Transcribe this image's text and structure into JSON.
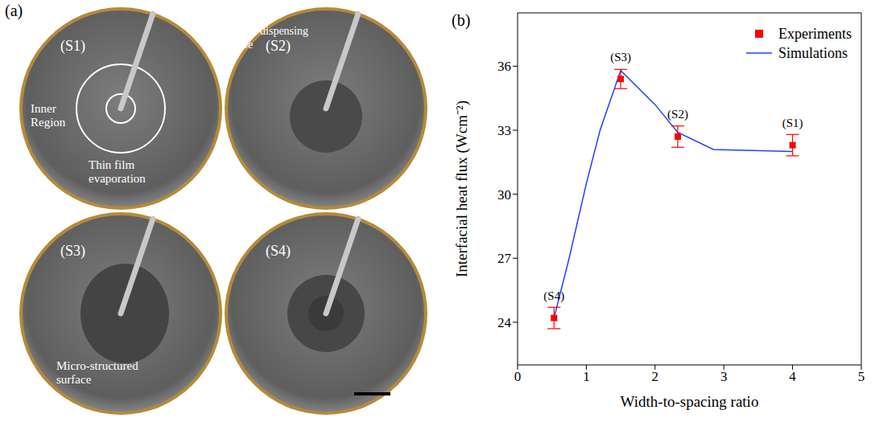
{
  "panel_labels": [
    "(a)",
    "(b)"
  ],
  "panel_a": {
    "photos": [
      {
        "label": "(S1)",
        "annotations": [
          "Inner Region",
          "Thin film evaporation"
        ]
      },
      {
        "label": "(S2)",
        "annotations": [
          "Fluid dispensing tube"
        ]
      },
      {
        "label": "(S3)",
        "annotations": [
          "Micro-structured surface"
        ]
      },
      {
        "label": "(S4)"
      }
    ]
  },
  "chart_data": {
    "type": "scatter",
    "x_label": "Width-to-spacing ratio",
    "y_label": "Interfacial heat flux (Wcm⁻²)",
    "xlim": [
      0,
      5
    ],
    "xticks": [
      0,
      1,
      2,
      3,
      4,
      5
    ],
    "ylim": [
      22,
      38.5
    ],
    "yticks": [
      24,
      27,
      30,
      33,
      36
    ],
    "legend": "upper right",
    "series": [
      {
        "name": "Experiments",
        "type": "scatter",
        "marker": "square",
        "color": "#ff0000",
        "x": [
          0.53,
          1.5,
          2.33,
          4.0
        ],
        "values": [
          24.2,
          35.4,
          32.7,
          32.3
        ],
        "errors": [
          0.5,
          0.45,
          0.5,
          0.5
        ],
        "point_labels": [
          "(S4)",
          "(S3)",
          "(S2)",
          "(S1)"
        ]
      },
      {
        "name": "Simulations",
        "type": "line",
        "color": "#1f3fff",
        "x": [
          0.53,
          0.75,
          1.0,
          1.2,
          1.5,
          1.75,
          2.0,
          2.33,
          2.85,
          4.0
        ],
        "values": [
          24.2,
          27.0,
          30.5,
          33.0,
          35.8,
          35.0,
          34.2,
          32.9,
          32.1,
          32.0
        ]
      }
    ]
  }
}
